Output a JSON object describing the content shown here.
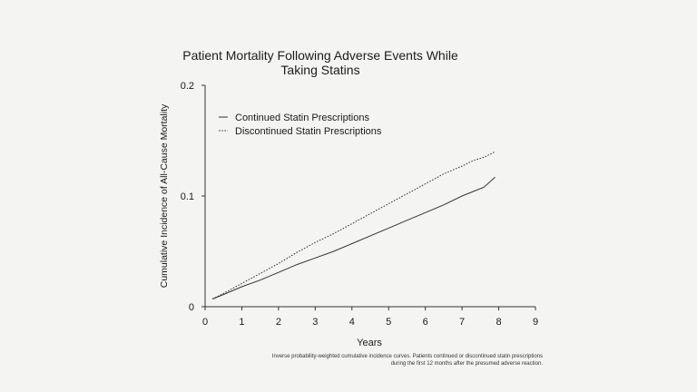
{
  "chart_data": {
    "type": "line",
    "title": "Patient Mortality Following Adverse Events While Taking Statins",
    "xlabel": "Years",
    "ylabel": "Cumulative Incidence of All-Cause Mortality",
    "xlim": [
      0,
      9
    ],
    "ylim": [
      0,
      0.2
    ],
    "x_ticks": [
      "0",
      "1",
      "2",
      "3",
      "4",
      "5",
      "6",
      "7",
      "8",
      "9"
    ],
    "y_ticks": [
      "0",
      "0.1",
      "0.2"
    ],
    "grid": false,
    "legend_position": "top-left",
    "series": [
      {
        "name": "Continued Statin Prescriptions",
        "style": "solid",
        "color": "#333333",
        "x": [
          0.2,
          0.5,
          1.0,
          1.5,
          2.0,
          2.5,
          3.0,
          3.5,
          4.0,
          4.5,
          5.0,
          5.5,
          6.0,
          6.5,
          7.0,
          7.3,
          7.6,
          7.9
        ],
        "y": [
          0.007,
          0.011,
          0.018,
          0.024,
          0.031,
          0.038,
          0.044,
          0.05,
          0.057,
          0.064,
          0.071,
          0.078,
          0.085,
          0.092,
          0.1,
          0.104,
          0.108,
          0.117
        ]
      },
      {
        "name": "Discontinued Statin Prescriptions",
        "style": "dotted",
        "color": "#333333",
        "x": [
          0.2,
          0.5,
          1.0,
          1.5,
          2.0,
          2.5,
          3.0,
          3.5,
          4.0,
          4.5,
          5.0,
          5.5,
          6.0,
          6.5,
          7.0,
          7.3,
          7.6,
          7.9
        ],
        "y": [
          0.007,
          0.012,
          0.021,
          0.03,
          0.039,
          0.049,
          0.058,
          0.066,
          0.075,
          0.084,
          0.093,
          0.102,
          0.111,
          0.12,
          0.127,
          0.132,
          0.135,
          0.14
        ]
      }
    ],
    "footnote": "Inverse probability-weighted cumulative incidence curves. Patients continued or discontinued statin prescriptions during the first 12 months after the presumed adverse reaction."
  }
}
